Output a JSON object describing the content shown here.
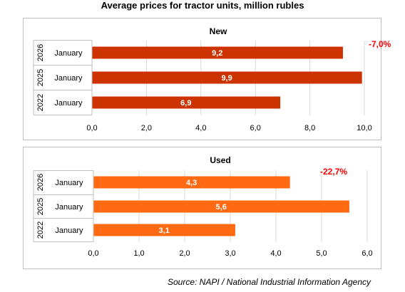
{
  "title": "Average prices for tractor units, million rubles",
  "source": "Source: NAPI / National Industrial Information Agency",
  "colors": {
    "new_bar": "#cc3300",
    "used_bar": "#ff6a13",
    "change_label": "#ff0000",
    "grid": "#d9d9d9"
  },
  "chart_data": [
    {
      "type": "bar",
      "orientation": "horizontal",
      "title": "New",
      "categories": [
        {
          "year": "2026",
          "month": "January"
        },
        {
          "year": "2025",
          "month": "January"
        },
        {
          "year": "2022",
          "month": "January"
        }
      ],
      "values": [
        9.2,
        9.9,
        6.9
      ],
      "value_labels": [
        "9,2",
        "9,9",
        "6,9"
      ],
      "xlim": [
        0,
        10
      ],
      "ticks": [
        "0,0",
        "2,0",
        "4,0",
        "6,0",
        "8,0",
        "10,0"
      ],
      "change_label": "-7,0%",
      "grid": true
    },
    {
      "type": "bar",
      "orientation": "horizontal",
      "title": "Used",
      "categories": [
        {
          "year": "2026",
          "month": "January"
        },
        {
          "year": "2025",
          "month": "January"
        },
        {
          "year": "2022",
          "month": "January"
        }
      ],
      "values": [
        4.3,
        5.6,
        3.1
      ],
      "value_labels": [
        "4,3",
        "5,6",
        "3,1"
      ],
      "xlim": [
        0,
        6
      ],
      "ticks": [
        "0,0",
        "1,0",
        "2,0",
        "3,0",
        "4,0",
        "5,0",
        "6,0"
      ],
      "change_label": "-22,7%",
      "grid": true
    }
  ]
}
